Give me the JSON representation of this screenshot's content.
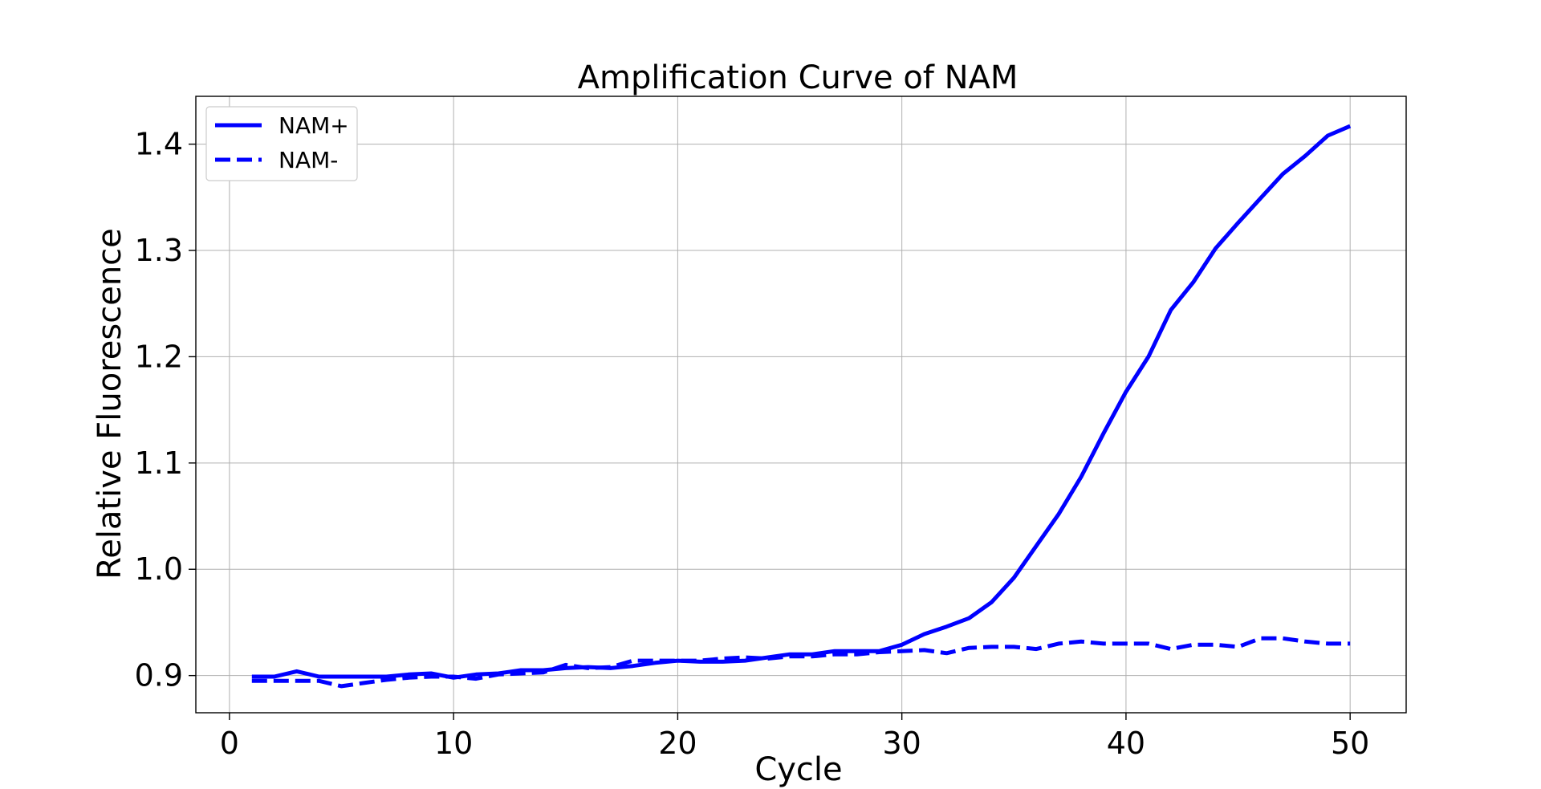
{
  "chart_data": {
    "type": "line",
    "title": "Amplification Curve of NAM",
    "xlabel": "Cycle",
    "ylabel": "Relative Fluorescence",
    "xlim": [
      -1.5,
      52.5
    ],
    "ylim": [
      0.865,
      1.445
    ],
    "xticks": [
      0,
      10,
      20,
      30,
      40,
      50
    ],
    "yticks": [
      0.9,
      1.0,
      1.1,
      1.2,
      1.3,
      1.4
    ],
    "xtick_labels": [
      "0",
      "10",
      "20",
      "30",
      "40",
      "50"
    ],
    "ytick_labels": [
      "0.9",
      "1.0",
      "1.1",
      "1.2",
      "1.3",
      "1.4"
    ],
    "grid": true,
    "legend_position": "top-left",
    "color": "#0000ff",
    "x": [
      1,
      2,
      3,
      4,
      5,
      6,
      7,
      8,
      9,
      10,
      11,
      12,
      13,
      14,
      15,
      16,
      17,
      18,
      19,
      20,
      21,
      22,
      23,
      24,
      25,
      26,
      27,
      28,
      29,
      30,
      31,
      32,
      33,
      34,
      35,
      36,
      37,
      38,
      39,
      40,
      41,
      42,
      43,
      44,
      45,
      46,
      47,
      48,
      49,
      50
    ],
    "series": [
      {
        "name": "NAM+",
        "style": "solid",
        "values": [
          0.899,
          0.899,
          0.904,
          0.899,
          0.899,
          0.899,
          0.899,
          0.901,
          0.902,
          0.898,
          0.901,
          0.902,
          0.905,
          0.905,
          0.907,
          0.908,
          0.907,
          0.909,
          0.912,
          0.914,
          0.913,
          0.913,
          0.914,
          0.917,
          0.92,
          0.92,
          0.923,
          0.923,
          0.923,
          0.929,
          0.939,
          0.946,
          0.954,
          0.969,
          0.992,
          1.022,
          1.052,
          1.087,
          1.128,
          1.167,
          1.2,
          1.244,
          1.27,
          1.302,
          1.326,
          1.349,
          1.372,
          1.389,
          1.408,
          1.417
        ]
      },
      {
        "name": "NAM-",
        "style": "dashed",
        "values": [
          0.895,
          0.895,
          0.895,
          0.895,
          0.89,
          0.893,
          0.896,
          0.898,
          0.899,
          0.899,
          0.897,
          0.901,
          0.902,
          0.903,
          0.91,
          0.907,
          0.908,
          0.914,
          0.914,
          0.914,
          0.914,
          0.916,
          0.917,
          0.916,
          0.918,
          0.918,
          0.92,
          0.92,
          0.922,
          0.923,
          0.924,
          0.921,
          0.926,
          0.927,
          0.927,
          0.925,
          0.93,
          0.932,
          0.93,
          0.93,
          0.93,
          0.925,
          0.929,
          0.929,
          0.927,
          0.935,
          0.935,
          0.932,
          0.93,
          0.93
        ]
      }
    ]
  }
}
